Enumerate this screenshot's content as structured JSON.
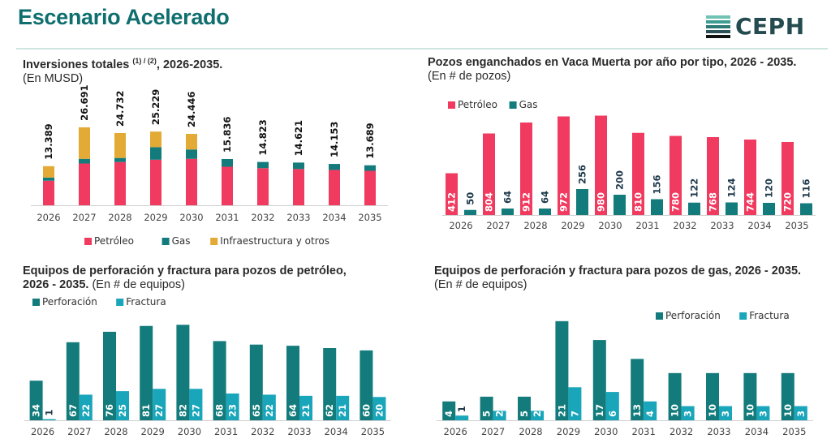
{
  "header": {
    "title": "Escenario Acelerado",
    "logo_text": "CEPH",
    "logo_icon": "ceph-striped-logo-icon"
  },
  "colors": {
    "title": "#0f6e6e",
    "petroleo": "#f03a5f",
    "gas": "#137b7b",
    "infra": "#e3aa35",
    "perforacion": "#137b7b",
    "fractura": "#19a5ba",
    "label_dark": "#1f3a4d"
  },
  "panels": {
    "inversiones": {
      "title": "Inversiones totales ",
      "sup": "(1) / (2)",
      "title_tail": ", 2026-2035.",
      "subtitle": "(En MUSD)"
    },
    "pozos": {
      "title": "Pozos enganchados en Vaca Muerta por año por tipo, 2026 - 2035.",
      "subtitle": "(En # de pozos)"
    },
    "equipos_petroleo": {
      "title": "Equipos de perforación y fractura para pozos de petróleo,",
      "title_line2": "2026 - 2035.",
      "subtitle": " (En # de equipos)"
    },
    "equipos_gas": {
      "title": "Equipos de perforación y fractura para pozos de gas, 2026 - 2035.",
      "subtitle": "(En # de equipos)"
    }
  },
  "chart_data": [
    {
      "id": "inversiones",
      "type": "bar",
      "stacked": true,
      "title": "Inversiones totales (1) / (2), 2026-2035.",
      "ylabel": "(En MUSD)",
      "categories": [
        "2026",
        "2027",
        "2028",
        "2029",
        "2030",
        "2031",
        "2032",
        "2033",
        "2034",
        "2035"
      ],
      "series": [
        {
          "name": "Petróleo",
          "color_key": "petroleo",
          "values": [
            8400,
            14300,
            14800,
            15600,
            15900,
            13200,
            12700,
            12400,
            12100,
            11800
          ]
        },
        {
          "name": "Gas",
          "color_key": "gas",
          "values": [
            1100,
            1600,
            1400,
            4300,
            3200,
            2636,
            2123,
            2221,
            2053,
            1889
          ]
        },
        {
          "name": "Infraestructura y otros",
          "color_key": "infra",
          "values": [
            3889,
            10791,
            8532,
            5329,
            5346,
            0,
            0,
            0,
            0,
            0
          ]
        }
      ],
      "totals": [
        13389,
        26691,
        24732,
        25229,
        24446,
        15836,
        14823,
        14621,
        14153,
        13689
      ],
      "total_labels": [
        "13.389",
        "26.691",
        "24.732",
        "25.229",
        "24.446",
        "15.836",
        "14.823",
        "14.621",
        "14.153",
        "13.689"
      ],
      "ylim": [
        0,
        30000
      ],
      "grid": false,
      "legend": "bottom"
    },
    {
      "id": "pozos",
      "type": "bar",
      "title": "Pozos enganchados en Vaca Muerta por año por tipo, 2026 - 2035.",
      "ylabel": "(En # de pozos)",
      "categories": [
        "2026",
        "2027",
        "2028",
        "2029",
        "2030",
        "2031",
        "2032",
        "2033",
        "2034",
        "2035"
      ],
      "series": [
        {
          "name": "Petróleo",
          "color_key": "petroleo",
          "values": [
            412,
            804,
            912,
            972,
            980,
            810,
            780,
            768,
            744,
            720
          ]
        },
        {
          "name": "Gas",
          "color_key": "gas",
          "values": [
            50,
            64,
            64,
            256,
            200,
            156,
            122,
            124,
            120,
            116
          ]
        }
      ],
      "ylim": [
        0,
        1000
      ],
      "grid": false,
      "legend": "top-left"
    },
    {
      "id": "equipos_petroleo",
      "type": "bar",
      "title": "Equipos de perforación y fractura para pozos de petróleo, 2026 - 2035.",
      "ylabel": "(En # de equipos)",
      "categories": [
        "2026",
        "2027",
        "2028",
        "2029",
        "2030",
        "2031",
        "2032",
        "2033",
        "2034",
        "2035"
      ],
      "series": [
        {
          "name": "Perforación",
          "color_key": "perforacion",
          "values": [
            34,
            67,
            76,
            81,
            82,
            68,
            65,
            64,
            62,
            60
          ]
        },
        {
          "name": "Fractura",
          "color_key": "fractura",
          "values": [
            1,
            22,
            25,
            27,
            27,
            23,
            22,
            21,
            21,
            20
          ]
        }
      ],
      "ylim": [
        0,
        85
      ],
      "grid": false,
      "legend": "top-left"
    },
    {
      "id": "equipos_gas",
      "type": "bar",
      "title": "Equipos de perforación y fractura para pozos de gas, 2026 - 2035.",
      "ylabel": "(En # de equipos)",
      "categories": [
        "2026",
        "2027",
        "2028",
        "2029",
        "2030",
        "2031",
        "2032",
        "2033",
        "2034",
        "2035"
      ],
      "series": [
        {
          "name": "Perforación",
          "color_key": "perforacion",
          "values": [
            4,
            5,
            5,
            21,
            17,
            13,
            10,
            10,
            10,
            10
          ]
        },
        {
          "name": "Fractura",
          "color_key": "fractura",
          "values": [
            1,
            2,
            2,
            7,
            6,
            4,
            3,
            3,
            3,
            3
          ]
        }
      ],
      "ylim": [
        0,
        22
      ],
      "grid": false,
      "legend": "top-right"
    }
  ]
}
